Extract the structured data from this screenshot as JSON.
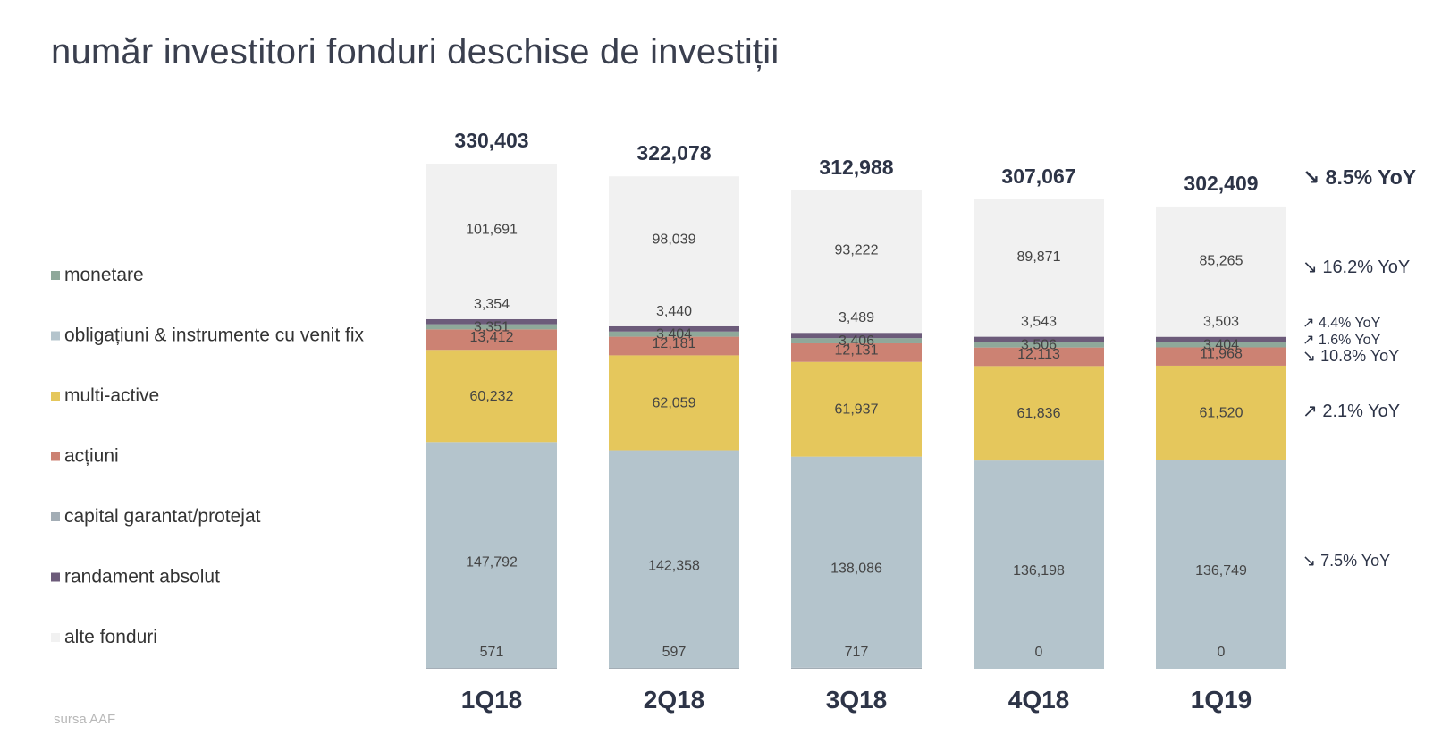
{
  "title": "număr investitori fonduri deschise de investiții",
  "source": "sursa AAF",
  "colors": {
    "monetare": "#8fa89a",
    "obligatiuni": "#b4c4cc",
    "multi_active": "#e5c75c",
    "actiuni": "#cc8273",
    "capital_garantat": "#a3adb5",
    "randament_absolut": "#6c5b7a",
    "alte_fonduri": "#f1f1f1",
    "total_text": "#2d3447",
    "value_text": "#444444"
  },
  "chart_data": {
    "type": "bar",
    "stacked": true,
    "categories": [
      "1Q18",
      "2Q18",
      "3Q18",
      "4Q18",
      "1Q19"
    ],
    "totals": [
      "330,403",
      "322,078",
      "312,988",
      "307,067",
      "302,409"
    ],
    "total_values": [
      330403,
      322078,
      312988,
      307067,
      302409
    ],
    "legend_placement": "left",
    "legend": [
      "monetare",
      "obligațiuni & instrumente cu venit fix",
      "multi-active",
      "acțiuni",
      "capital garantat/protejat",
      "randament absolut",
      "alte fonduri"
    ],
    "series": [
      {
        "key": "capital_garantat",
        "values": [
          571,
          597,
          717,
          0,
          0
        ],
        "labels": [
          "571",
          "597",
          "717",
          "0",
          "0"
        ]
      },
      {
        "key": "obligatiuni",
        "values": [
          147792,
          142358,
          138086,
          136198,
          136749
        ],
        "labels": [
          "147,792",
          "142,358",
          "138,086",
          "136,198",
          "136,749"
        ]
      },
      {
        "key": "multi_active",
        "values": [
          60232,
          62059,
          61937,
          61836,
          61520
        ],
        "labels": [
          "60,232",
          "62,059",
          "61,937",
          "61,836",
          "61,520"
        ]
      },
      {
        "key": "actiuni",
        "values": [
          13412,
          12181,
          12131,
          12113,
          11968
        ],
        "labels": [
          "13,412",
          "12,181",
          "12,131",
          "12,113",
          "11,968"
        ]
      },
      {
        "key": "monetare",
        "values": [
          3351,
          3404,
          3406,
          3506,
          3404
        ],
        "labels": [
          "3,351",
          "3,404",
          "3,406",
          "3,506",
          "3,404"
        ]
      },
      {
        "key": "randament_absolut",
        "values": [
          3354,
          3440,
          3489,
          3543,
          3503
        ],
        "labels": [
          "3,354",
          "3,440",
          "3,489",
          "3,543",
          "3,503"
        ]
      },
      {
        "key": "alte_fonduri",
        "values": [
          101691,
          98039,
          93222,
          89871,
          85265
        ],
        "labels": [
          "101,691",
          "98,039",
          "93,222",
          "89,871",
          "85,265"
        ]
      }
    ],
    "yoy": [
      {
        "arrow": "↘",
        "text": "8.5% YoY",
        "bold": true
      },
      {
        "arrow": "↘",
        "text": "16.2% YoY"
      },
      {
        "arrow": "↗",
        "text": "4.4% YoY"
      },
      {
        "arrow": "↗",
        "text": "1.6% YoY"
      },
      {
        "arrow": "↘",
        "text": "10.8% YoY"
      },
      {
        "arrow": "↗",
        "text": "2.1% YoY"
      },
      {
        "arrow": "↘",
        "text": "7.5% YoY"
      }
    ]
  }
}
